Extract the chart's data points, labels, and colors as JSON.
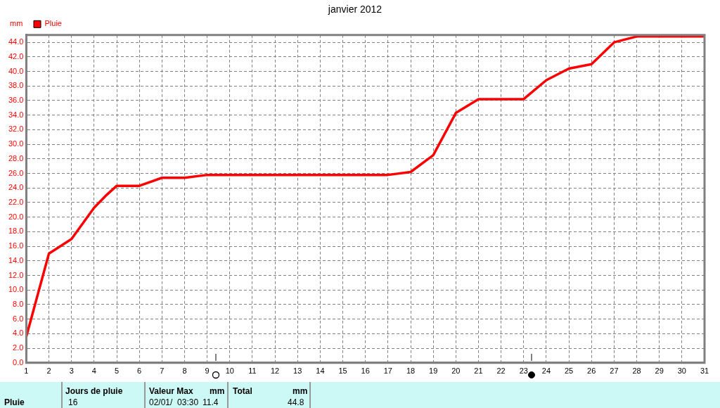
{
  "chart_data": {
    "type": "line",
    "title": "janvier 2012",
    "ylabel": "mm",
    "series": [
      {
        "name": "Pluie",
        "color": "#ff0000",
        "x": [
          1,
          2,
          3,
          4,
          4.5,
          5,
          6,
          7,
          8,
          9,
          10,
          11,
          12,
          13,
          14,
          15,
          16,
          17,
          18,
          19,
          20,
          21,
          22,
          23,
          24,
          25,
          26,
          27,
          28,
          29,
          30,
          31
        ],
        "values": [
          3.6,
          15.0,
          17.0,
          21.3,
          22.9,
          24.3,
          24.3,
          25.4,
          25.4,
          25.8,
          25.8,
          25.8,
          25.8,
          25.8,
          25.8,
          25.8,
          25.8,
          25.8,
          26.2,
          28.5,
          34.3,
          36.2,
          36.2,
          36.2,
          38.8,
          40.4,
          41.0,
          44.0,
          44.8,
          44.8,
          44.8,
          44.8
        ]
      }
    ],
    "xlim": [
      1,
      31
    ],
    "xticks": [
      1,
      2,
      3,
      4,
      5,
      6,
      7,
      8,
      9,
      10,
      11,
      12,
      13,
      14,
      15,
      16,
      17,
      18,
      19,
      20,
      21,
      22,
      23,
      24,
      25,
      26,
      27,
      28,
      29,
      30,
      31
    ],
    "ylim": [
      0,
      45
    ],
    "yticks": [
      {
        "value": 0,
        "label": "0.0"
      },
      {
        "value": 2,
        "label": "2.0"
      },
      {
        "value": 4,
        "label": "4.0"
      },
      {
        "value": 6,
        "label": "6.0"
      },
      {
        "value": 8,
        "label": "8.0"
      },
      {
        "value": 10,
        "label": "10.0"
      },
      {
        "value": 12,
        "label": "12.0"
      },
      {
        "value": 14,
        "label": "14.0"
      },
      {
        "value": 16,
        "label": "16.0"
      },
      {
        "value": 18,
        "label": "18.0"
      },
      {
        "value": 20,
        "label": "20.0"
      },
      {
        "value": 22,
        "label": "22.0"
      },
      {
        "value": 24,
        "label": "24.0"
      },
      {
        "value": 26,
        "label": "26.0"
      },
      {
        "value": 28,
        "label": "28.0"
      },
      {
        "value": 30,
        "label": "30.0"
      },
      {
        "value": 32,
        "label": "32.0"
      },
      {
        "value": 34,
        "label": "34.0"
      },
      {
        "value": 36,
        "label": "36.0"
      },
      {
        "value": 38,
        "label": "38.0"
      },
      {
        "value": 40,
        "label": "40.0"
      },
      {
        "value": 42,
        "label": "42.0"
      },
      {
        "value": 44,
        "label": "44.0"
      }
    ],
    "grid": true,
    "legend": "top left",
    "marker": "none",
    "line_style": "solid",
    "annotations": [
      "Pluie",
      "Jours de pluie",
      "16",
      "Valeur Max",
      "mm",
      "02/01/  03:30",
      "11.4",
      "Total",
      "mm",
      "44.8"
    ]
  }
}
